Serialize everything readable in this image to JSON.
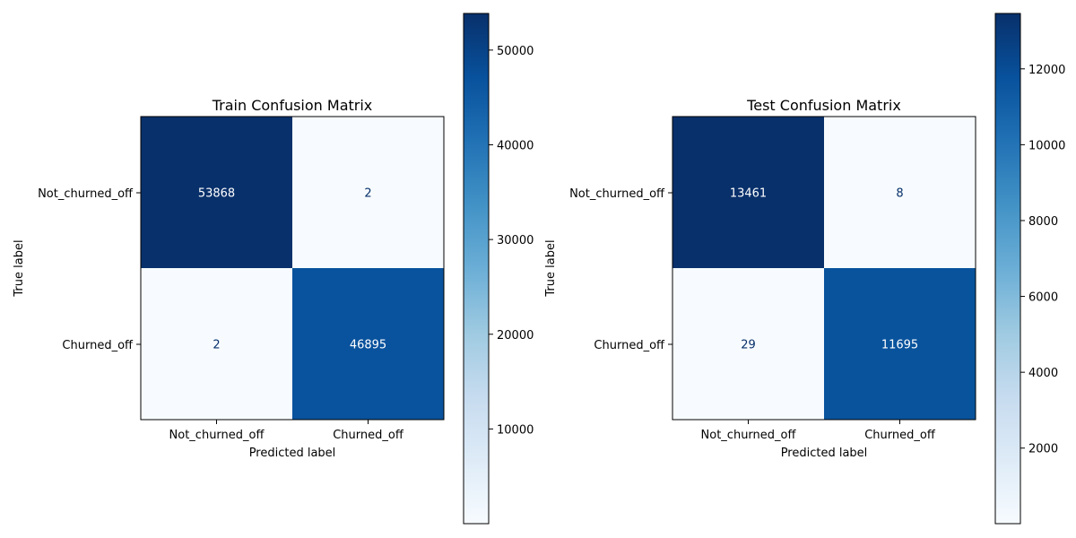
{
  "chart_data": [
    {
      "type": "heatmap",
      "title": "Train Confusion Matrix",
      "xlabel": "Predicted label",
      "ylabel": "True label",
      "x_categories": [
        "Not_churned_off",
        "Churned_off"
      ],
      "y_categories": [
        "Not_churned_off",
        "Churned_off"
      ],
      "values": [
        [
          53868,
          2
        ],
        [
          2,
          46895
        ]
      ],
      "colormap": "Blues",
      "colorbar": {
        "min": 2,
        "max": 53868,
        "ticks": [
          10000,
          20000,
          30000,
          40000,
          50000
        ]
      }
    },
    {
      "type": "heatmap",
      "title": "Test Confusion Matrix",
      "xlabel": "Predicted label",
      "ylabel": "True label",
      "x_categories": [
        "Not_churned_off",
        "Churned_off"
      ],
      "y_categories": [
        "Not_churned_off",
        "Churned_off"
      ],
      "values": [
        [
          13461,
          8
        ],
        [
          29,
          11695
        ]
      ],
      "colormap": "Blues",
      "colorbar": {
        "min": 8,
        "max": 13461,
        "ticks": [
          2000,
          4000,
          6000,
          8000,
          10000,
          12000
        ]
      }
    }
  ],
  "colors": {
    "blues_low": "#f7fbff",
    "blues_high": "#08306b",
    "text_dark": "#08306b",
    "text_light": "#ffffff"
  }
}
